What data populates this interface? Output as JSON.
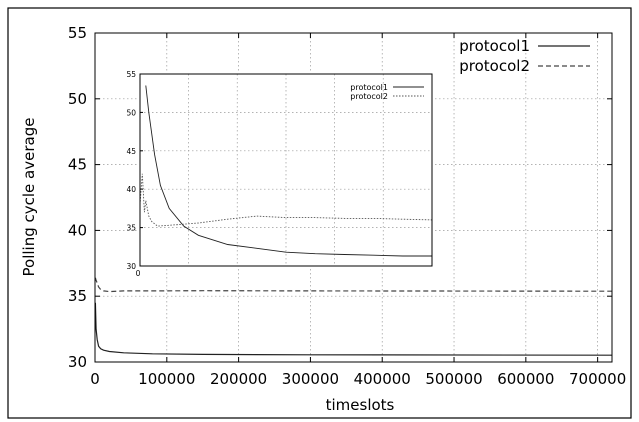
{
  "chart_data": [
    {
      "type": "line",
      "title": "",
      "xlabel": "timeslots",
      "ylabel": "Polling cycle average",
      "xlim": [
        0,
        720000
      ],
      "ylim": [
        30,
        55
      ],
      "x_ticks": [
        0,
        100000,
        200000,
        300000,
        400000,
        500000,
        600000,
        700000
      ],
      "x_tick_labels": [
        "0",
        "100000",
        "200000",
        "300000",
        "400000",
        "500000",
        "600000",
        "700000"
      ],
      "y_ticks": [
        30,
        35,
        40,
        45,
        50,
        55
      ],
      "y_tick_labels": [
        "30",
        "35",
        "40",
        "45",
        "50",
        "55"
      ],
      "grid": true,
      "legend_position": "top-right",
      "series": [
        {
          "name": "protocol1",
          "style": "solid",
          "x": [
            500,
            1500,
            3000,
            5000,
            8000,
            12000,
            20000,
            40000,
            80000,
            150000,
            300000,
            720000
          ],
          "y": [
            34.5,
            32.5,
            31.7,
            31.2,
            31.0,
            30.9,
            30.8,
            30.7,
            30.62,
            30.58,
            30.55,
            30.52
          ]
        },
        {
          "name": "protocol2",
          "style": "dashed",
          "x": [
            500,
            1500,
            3000,
            5000,
            8000,
            12000,
            20000,
            40000,
            80000,
            150000,
            300000,
            720000
          ],
          "y": [
            36.4,
            36.2,
            36.0,
            35.7,
            35.5,
            35.4,
            35.35,
            35.4,
            35.4,
            35.42,
            35.4,
            35.38
          ]
        }
      ]
    },
    {
      "type": "line",
      "title": "",
      "xlabel": "",
      "ylabel": "",
      "ylim": [
        30,
        55
      ],
      "y_ticks": [
        30,
        35,
        40,
        45,
        50,
        55
      ],
      "y_tick_labels": [
        "30",
        "35",
        "40",
        "45",
        "50",
        "55"
      ],
      "x_tick_labels": [
        "0"
      ],
      "grid": true,
      "legend_position": "top-right",
      "series": [
        {
          "name": "protocol1",
          "style": "solid",
          "x": [
            0.02,
            0.03,
            0.05,
            0.07,
            0.1,
            0.15,
            0.2,
            0.3,
            0.4,
            0.5,
            0.6,
            0.7,
            0.8,
            0.9,
            1.0
          ],
          "y": [
            53.5,
            50.0,
            44.5,
            40.5,
            37.5,
            35.2,
            34.0,
            32.8,
            32.3,
            31.8,
            31.6,
            31.5,
            31.4,
            31.3,
            31.3
          ]
        },
        {
          "name": "protocol2",
          "style": "dotted",
          "x": [
            0.0,
            0.008,
            0.015,
            0.02,
            0.03,
            0.04,
            0.06,
            0.1,
            0.2,
            0.3,
            0.4,
            0.5,
            0.6,
            0.7,
            0.8,
            0.9,
            1.0
          ],
          "y": [
            38.0,
            42.0,
            37.0,
            38.5,
            36.5,
            35.8,
            35.2,
            35.3,
            35.6,
            36.1,
            36.5,
            36.3,
            36.3,
            36.2,
            36.2,
            36.1,
            36.0
          ]
        }
      ]
    }
  ]
}
